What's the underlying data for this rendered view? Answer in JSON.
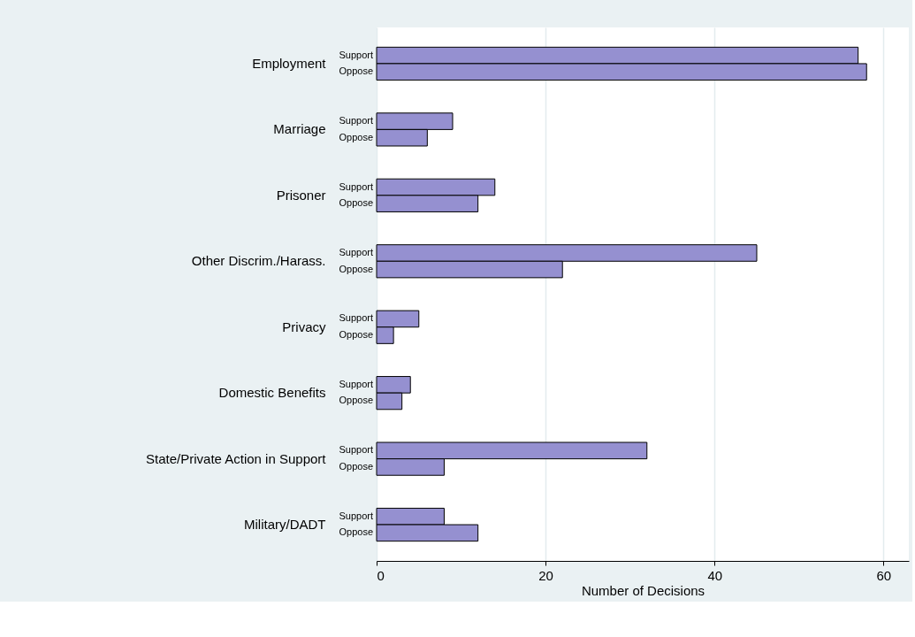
{
  "chart_data": {
    "type": "bar",
    "orientation": "horizontal",
    "xlabel": "Number of Decisions",
    "categories": [
      "Employment",
      "Marriage",
      "Prisoner",
      "Other Discrim./Harass.",
      "Privacy",
      "Domestic Benefits",
      "State/Private Action in Support",
      "Military/DADT"
    ],
    "series": [
      {
        "name": "Support",
        "color": "#9590d0",
        "values": [
          57,
          9,
          14,
          45,
          5,
          4,
          32,
          8
        ]
      },
      {
        "name": "Oppose",
        "color": "#9590d0",
        "values": [
          58,
          6,
          12,
          22,
          2,
          3,
          8,
          12
        ]
      }
    ],
    "xlim": [
      0,
      63
    ],
    "xticks": [
      0,
      20,
      40,
      60
    ],
    "grid": "x",
    "legend": false
  }
}
